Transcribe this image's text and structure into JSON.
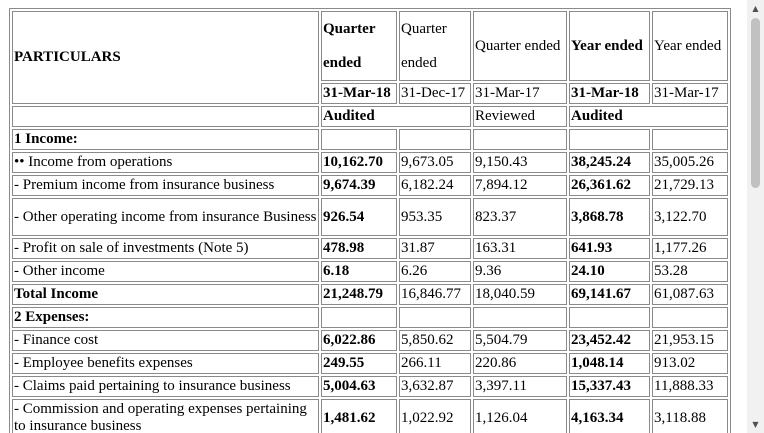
{
  "header": {
    "particulars": "PARTICULARS",
    "columns": [
      {
        "line1": "Quarter",
        "line2": "ended",
        "date": "31-Mar-18",
        "bold": true
      },
      {
        "line1": "Quarter",
        "line2": "ended",
        "date": "31-Dec-17",
        "bold": false
      },
      {
        "line1": "Quarter ended",
        "line2": "",
        "date": "31-Mar-17",
        "bold": false
      },
      {
        "line1": "Year ended",
        "line2": "",
        "date": "31-Mar-18",
        "bold": true
      },
      {
        "line1": "Year ended",
        "line2": "",
        "date": "31-Mar-17",
        "bold": false
      }
    ],
    "status_audited_q": "Audited",
    "status_reviewed": "Reviewed",
    "status_audited_y": "Audited"
  },
  "rows": [
    {
      "label": "1 Income:",
      "bold": true,
      "values": [
        "",
        "",
        "",
        "",
        ""
      ]
    },
    {
      "label": "•• Income from operations",
      "bold": false,
      "values": [
        "10,162.70",
        "9,673.05",
        "9,150.43",
        "38,245.24",
        "35,005.26"
      ]
    },
    {
      "label": "- Premium income from insurance business",
      "bold": false,
      "values": [
        "9,674.39",
        "6,182.24",
        "7,894.12",
        "26,361.62",
        "21,729.13"
      ]
    },
    {
      "label": "- Other operating income from insurance Business",
      "bold": false,
      "wrap": true,
      "values": [
        "926.54",
        "953.35",
        "823.37",
        "3,868.78",
        "3,122.70"
      ]
    },
    {
      "label": "- Profit on sale of investments (Note 5)",
      "bold": false,
      "values": [
        "478.98",
        "31.87",
        "163.31",
        "641.93",
        "1,177.26"
      ]
    },
    {
      "label": "- Other income",
      "bold": false,
      "values": [
        "6.18",
        "6.26",
        "9.36",
        "24.10",
        "53.28"
      ]
    },
    {
      "label": "Total Income",
      "bold": true,
      "values": [
        "21,248.79",
        "16,846.77",
        "18,040.59",
        "69,141.67",
        "61,087.63"
      ]
    },
    {
      "label": "2 Expenses:",
      "bold": true,
      "values": [
        "",
        "",
        "",
        "",
        ""
      ]
    },
    {
      "label": "- Finance cost",
      "bold": false,
      "values": [
        "6,022.86",
        "5,850.62",
        "5,504.79",
        "23,452.42",
        "21,953.15"
      ]
    },
    {
      "label": "- Employee benefits expenses",
      "bold": false,
      "values": [
        "249.55",
        "266.11",
        "220.86",
        "1,048.14",
        "913.02"
      ]
    },
    {
      "label": "- Claims paid pertaining to insurance business",
      "bold": false,
      "values": [
        "5,004.63",
        "3,632.87",
        "3,397.11",
        "15,337.43",
        "11,888.33"
      ]
    },
    {
      "label": "- Commission and operating expenses pertaining to insurance business",
      "bold": false,
      "wrap": true,
      "values": [
        "1,481.62",
        "1,022.92",
        "1,126.04",
        "4,163.34",
        "3,118.88"
      ]
    }
  ],
  "bold_columns": [
    0,
    3
  ]
}
